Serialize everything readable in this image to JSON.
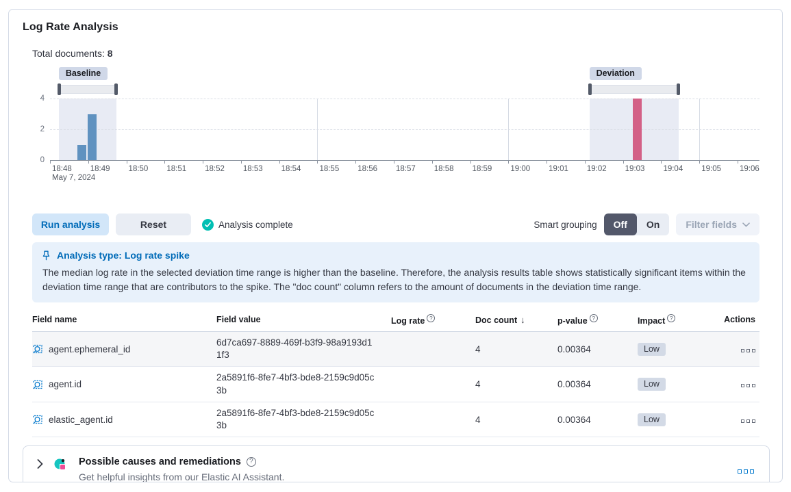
{
  "panel": {
    "title": "Log Rate Analysis",
    "total_documents_label": "Total documents:",
    "total_documents_value": "8"
  },
  "chart_data": {
    "type": "bar",
    "title": "Log rate document count histogram",
    "x_axis": {
      "date_label": "May 7, 2024",
      "tick_labels": [
        "18:48",
        "18:49",
        "18:50",
        "18:51",
        "18:52",
        "18:53",
        "18:54",
        "18:55",
        "18:56",
        "18:57",
        "18:58",
        "18:59",
        "19:00",
        "19:01",
        "19:02",
        "19:03",
        "19:04",
        "19:05",
        "19:06"
      ]
    },
    "y_axis": {
      "tick_labels": [
        "0",
        "2",
        "4"
      ],
      "lim": [
        0,
        4
      ]
    },
    "grid_minutes": [
      7,
      12,
      17
    ],
    "bars": [
      {
        "time": "18:48:45",
        "t": 0.71,
        "value": 1,
        "series": "baseline"
      },
      {
        "time": "18:49:00",
        "t": 0.98,
        "value": 3,
        "series": "baseline"
      },
      {
        "time": "19:03:10",
        "t": 15.25,
        "value": 4,
        "series": "deviation"
      }
    ],
    "windows": [
      {
        "label": "Baseline",
        "start": "18:48:15",
        "end": "18:49:45",
        "t0": 0.23,
        "t1": 1.74
      },
      {
        "label": "Deviation",
        "start": "19:02:05",
        "end": "19:04:25",
        "t0": 14.12,
        "t1": 16.45
      }
    ],
    "colors": {
      "baseline_bar": "#6092c0",
      "deviation_bar": "#d36086",
      "window_fill": "#e8ebf4"
    }
  },
  "controls": {
    "run_analysis_label": "Run analysis",
    "reset_label": "Reset",
    "status_label": "Analysis complete",
    "check_glyph": "✓",
    "smart_grouping_label": "Smart grouping",
    "toggle_off_label": "Off",
    "toggle_on_label": "On",
    "filter_fields_label": "Filter fields"
  },
  "callout": {
    "title": "Analysis type: Log rate spike",
    "body": "The median log rate in the selected deviation time range is higher than the baseline. Therefore, the analysis results table shows statistically significant items within the deviation time range that are contributors to the spike. The \"doc count\" column refers to the amount of documents in the deviation time range."
  },
  "table": {
    "info_glyph": "?",
    "sort_arrow": "↓",
    "columns": {
      "field_name": "Field name",
      "field_value": "Field value",
      "log_rate": "Log rate",
      "doc_count": "Doc count",
      "p_value": "p-value",
      "impact": "Impact",
      "actions": "Actions"
    },
    "rows": [
      {
        "field_name": "agent.ephemeral_id",
        "field_value": "6d7ca697-8889-469f-b3f9-98a9193d11f3",
        "doc_count": "4",
        "p_value": "0.00364",
        "impact": "Low"
      },
      {
        "field_name": "agent.id",
        "field_value": "2a5891f6-8fe7-4bf3-bde8-2159c9d05c3b",
        "doc_count": "4",
        "p_value": "0.00364",
        "impact": "Low"
      },
      {
        "field_name": "elastic_agent.id",
        "field_value": "2a5891f6-8fe7-4bf3-bde8-2159c9d05c3b",
        "doc_count": "4",
        "p_value": "0.00364",
        "impact": "Low"
      }
    ]
  },
  "ai_panel": {
    "title": "Possible causes and remediations",
    "help_glyph": "?",
    "subtitle": "Get helpful insights from our Elastic AI Assistant."
  }
}
